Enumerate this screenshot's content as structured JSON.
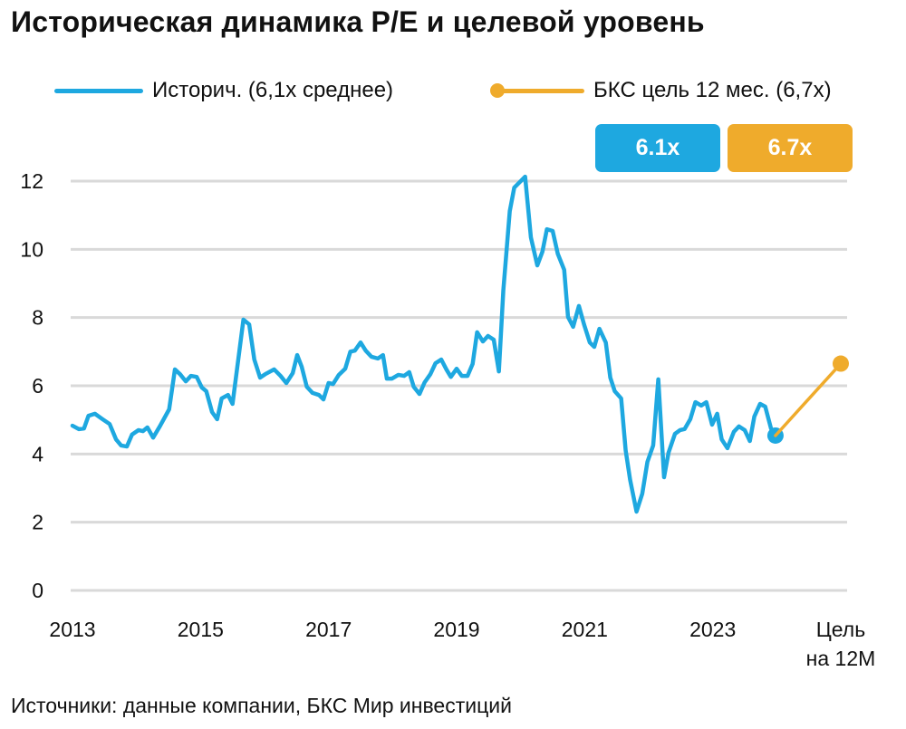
{
  "chart_data": {
    "type": "line",
    "title": "Историческая динамика P/E и целевой уровень",
    "source": "Источники: данные компании, БКС Мир инвестиций",
    "ylim": [
      0,
      12
    ],
    "yticks": [
      0,
      2,
      4,
      6,
      8,
      10,
      12
    ],
    "xlim": [
      2013,
      2025
    ],
    "xticks": [
      {
        "value": 2013,
        "label": "2013"
      },
      {
        "value": 2015,
        "label": "2015"
      },
      {
        "value": 2017,
        "label": "2017"
      },
      {
        "value": 2019,
        "label": "2019"
      },
      {
        "value": 2021,
        "label": "2021"
      },
      {
        "value": 2023,
        "label": "2023"
      }
    ],
    "target_label": [
      "Цель",
      "на 12М"
    ],
    "grid": true,
    "legend_position": "top",
    "colors": {
      "historical": "#1ea8e0",
      "target": "#efab2c",
      "grid": "#d9d9d9"
    },
    "series": [
      {
        "name": "Историч. (6,1x среднее)",
        "badge": "6.1x",
        "points": [
          [
            2013.0,
            4.83
          ],
          [
            2013.1,
            4.73
          ],
          [
            2013.18,
            4.75
          ],
          [
            2013.25,
            5.12
          ],
          [
            2013.35,
            5.18
          ],
          [
            2013.47,
            5.02
          ],
          [
            2013.58,
            4.88
          ],
          [
            2013.68,
            4.43
          ],
          [
            2013.76,
            4.25
          ],
          [
            2013.85,
            4.22
          ],
          [
            2013.93,
            4.57
          ],
          [
            2014.03,
            4.7
          ],
          [
            2014.1,
            4.67
          ],
          [
            2014.17,
            4.78
          ],
          [
            2014.26,
            4.48
          ],
          [
            2014.37,
            4.83
          ],
          [
            2014.51,
            5.31
          ],
          [
            2014.6,
            6.48
          ],
          [
            2014.68,
            6.34
          ],
          [
            2014.77,
            6.13
          ],
          [
            2014.85,
            6.29
          ],
          [
            2014.94,
            6.26
          ],
          [
            2015.02,
            5.95
          ],
          [
            2015.09,
            5.84
          ],
          [
            2015.18,
            5.23
          ],
          [
            2015.26,
            5.02
          ],
          [
            2015.33,
            5.63
          ],
          [
            2015.43,
            5.73
          ],
          [
            2015.5,
            5.47
          ],
          [
            2015.67,
            7.94
          ],
          [
            2015.76,
            7.8
          ],
          [
            2015.84,
            6.77
          ],
          [
            2015.93,
            6.24
          ],
          [
            2016.01,
            6.34
          ],
          [
            2016.15,
            6.48
          ],
          [
            2016.25,
            6.29
          ],
          [
            2016.34,
            6.08
          ],
          [
            2016.44,
            6.37
          ],
          [
            2016.51,
            6.9
          ],
          [
            2016.58,
            6.56
          ],
          [
            2016.66,
            5.97
          ],
          [
            2016.75,
            5.79
          ],
          [
            2016.85,
            5.73
          ],
          [
            2016.92,
            5.6
          ],
          [
            2017.0,
            6.08
          ],
          [
            2017.07,
            6.05
          ],
          [
            2017.16,
            6.32
          ],
          [
            2017.26,
            6.5
          ],
          [
            2017.34,
            7.0
          ],
          [
            2017.41,
            7.03
          ],
          [
            2017.5,
            7.27
          ],
          [
            2017.58,
            7.03
          ],
          [
            2017.67,
            6.85
          ],
          [
            2017.77,
            6.8
          ],
          [
            2017.85,
            6.9
          ],
          [
            2017.91,
            6.21
          ],
          [
            2017.99,
            6.21
          ],
          [
            2018.09,
            6.32
          ],
          [
            2018.18,
            6.29
          ],
          [
            2018.26,
            6.4
          ],
          [
            2018.33,
            5.97
          ],
          [
            2018.42,
            5.76
          ],
          [
            2018.5,
            6.1
          ],
          [
            2018.59,
            6.34
          ],
          [
            2018.67,
            6.66
          ],
          [
            2018.76,
            6.77
          ],
          [
            2018.84,
            6.48
          ],
          [
            2018.91,
            6.26
          ],
          [
            2019.0,
            6.5
          ],
          [
            2019.08,
            6.29
          ],
          [
            2019.17,
            6.29
          ],
          [
            2019.25,
            6.64
          ],
          [
            2019.32,
            7.57
          ],
          [
            2019.41,
            7.3
          ],
          [
            2019.49,
            7.46
          ],
          [
            2019.58,
            7.35
          ],
          [
            2019.66,
            6.42
          ],
          [
            2019.73,
            8.81
          ],
          [
            2019.83,
            11.12
          ],
          [
            2019.9,
            11.81
          ],
          [
            2020.07,
            12.13
          ],
          [
            2020.16,
            10.35
          ],
          [
            2020.26,
            9.53
          ],
          [
            2020.34,
            9.93
          ],
          [
            2020.41,
            10.59
          ],
          [
            2020.5,
            10.54
          ],
          [
            2020.58,
            9.87
          ],
          [
            2020.68,
            9.4
          ],
          [
            2020.74,
            8.02
          ],
          [
            2020.82,
            7.73
          ],
          [
            2020.91,
            8.34
          ],
          [
            2020.99,
            7.8
          ],
          [
            2021.08,
            7.27
          ],
          [
            2021.15,
            7.14
          ],
          [
            2021.23,
            7.67
          ],
          [
            2021.33,
            7.27
          ],
          [
            2021.4,
            6.24
          ],
          [
            2021.47,
            5.84
          ],
          [
            2021.57,
            5.63
          ],
          [
            2021.64,
            4.11
          ],
          [
            2021.71,
            3.24
          ],
          [
            2021.81,
            2.31
          ],
          [
            2021.9,
            2.84
          ],
          [
            2021.98,
            3.77
          ],
          [
            2022.07,
            4.25
          ],
          [
            2022.15,
            6.19
          ],
          [
            2022.24,
            3.32
          ],
          [
            2022.31,
            4.04
          ],
          [
            2022.41,
            4.59
          ],
          [
            2022.49,
            4.7
          ],
          [
            2022.56,
            4.73
          ],
          [
            2022.65,
            5.02
          ],
          [
            2022.73,
            5.52
          ],
          [
            2022.82,
            5.42
          ],
          [
            2022.9,
            5.52
          ],
          [
            2022.99,
            4.86
          ],
          [
            2023.07,
            5.18
          ],
          [
            2023.14,
            4.43
          ],
          [
            2023.23,
            4.17
          ],
          [
            2023.33,
            4.65
          ],
          [
            2023.41,
            4.81
          ],
          [
            2023.5,
            4.7
          ],
          [
            2023.58,
            4.38
          ],
          [
            2023.65,
            5.1
          ],
          [
            2023.74,
            5.47
          ],
          [
            2023.82,
            5.39
          ],
          [
            2023.91,
            4.75
          ],
          [
            2023.98,
            4.54
          ]
        ]
      },
      {
        "name": "БКС цель 12 мес. (6,7x)",
        "badge": "6.7x",
        "points": [
          [
            2023.98,
            4.54
          ],
          [
            2025.0,
            6.65
          ]
        ]
      }
    ]
  }
}
